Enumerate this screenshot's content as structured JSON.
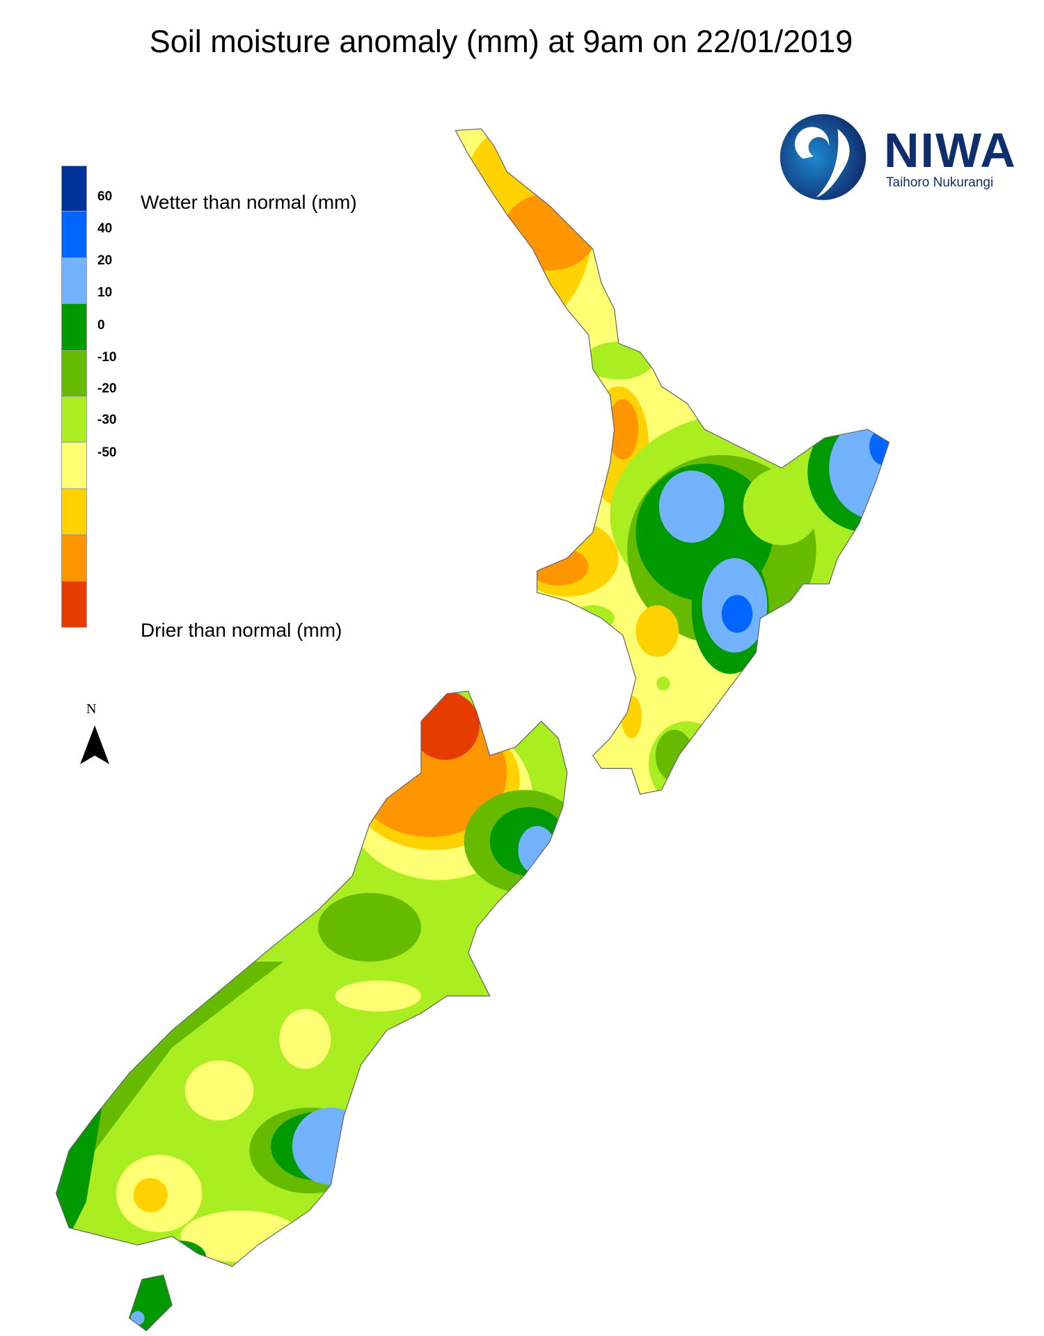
{
  "title": "Soil moisture anomaly (mm) at 9am on 22/01/2019",
  "legend": {
    "wetter_label": "Wetter than normal (mm)",
    "drier_label": "Drier than normal (mm)",
    "ticks": [
      "60",
      "40",
      "20",
      "10",
      "0",
      "-10",
      "-20",
      "-30",
      "-50"
    ],
    "colors": [
      "#003399",
      "#0066ff",
      "#73b2ff",
      "#009900",
      "#66bb00",
      "#aaee22",
      "#ffff73",
      "#ffd200",
      "#ff9600",
      "#e63c00"
    ]
  },
  "logo": {
    "name": "NIWA",
    "tagline": "Taihoro Nukurangi",
    "color": "#0f2e6e"
  },
  "north_arrow": {
    "label": "N"
  }
}
